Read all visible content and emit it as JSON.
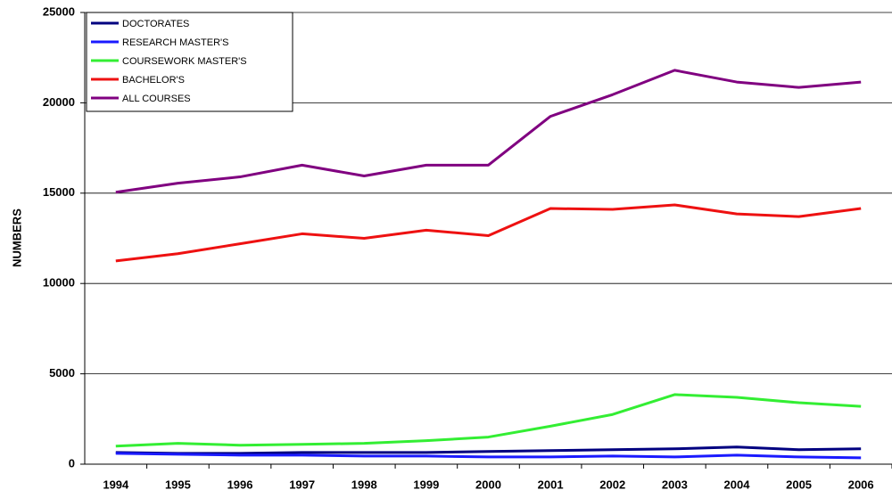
{
  "chart_data": {
    "type": "line",
    "y_label": "NUMBERS",
    "categories": [
      "1994",
      "1995",
      "1996",
      "1997",
      "1998",
      "1999",
      "2000",
      "2001",
      "2002",
      "2003",
      "2004",
      "2005",
      "2006"
    ],
    "series": [
      {
        "name": "DOCTORATES",
        "color": "#000080",
        "values": [
          650,
          600,
          600,
          650,
          650,
          650,
          700,
          750,
          800,
          850,
          950,
          800,
          850
        ]
      },
      {
        "name": "RESEARCH MASTER'S",
        "color": "#1a1aff",
        "values": [
          600,
          550,
          500,
          500,
          450,
          450,
          400,
          400,
          450,
          400,
          500,
          400,
          350
        ]
      },
      {
        "name": "COURSEWORK MASTER'S",
        "color": "#33ee33",
        "values": [
          1000,
          1150,
          1050,
          1100,
          1150,
          1300,
          1500,
          2100,
          2750,
          3850,
          3700,
          3400,
          3200
        ]
      },
      {
        "name": "BACHELOR'S",
        "color": "#ee1111",
        "values": [
          11250,
          11650,
          12200,
          12750,
          12500,
          12950,
          12650,
          14150,
          14100,
          14350,
          13850,
          13700,
          14150
        ]
      },
      {
        "name": "ALL COURSES",
        "color": "#800080",
        "values": [
          15050,
          15550,
          15900,
          16550,
          15950,
          16550,
          16550,
          19250,
          20450,
          21800,
          21150,
          20850,
          21150
        ]
      }
    ],
    "ylim": [
      0,
      25000
    ],
    "yticks": [
      0,
      5000,
      10000,
      15000,
      20000,
      25000
    ],
    "grid": true,
    "legend": "top-left"
  }
}
